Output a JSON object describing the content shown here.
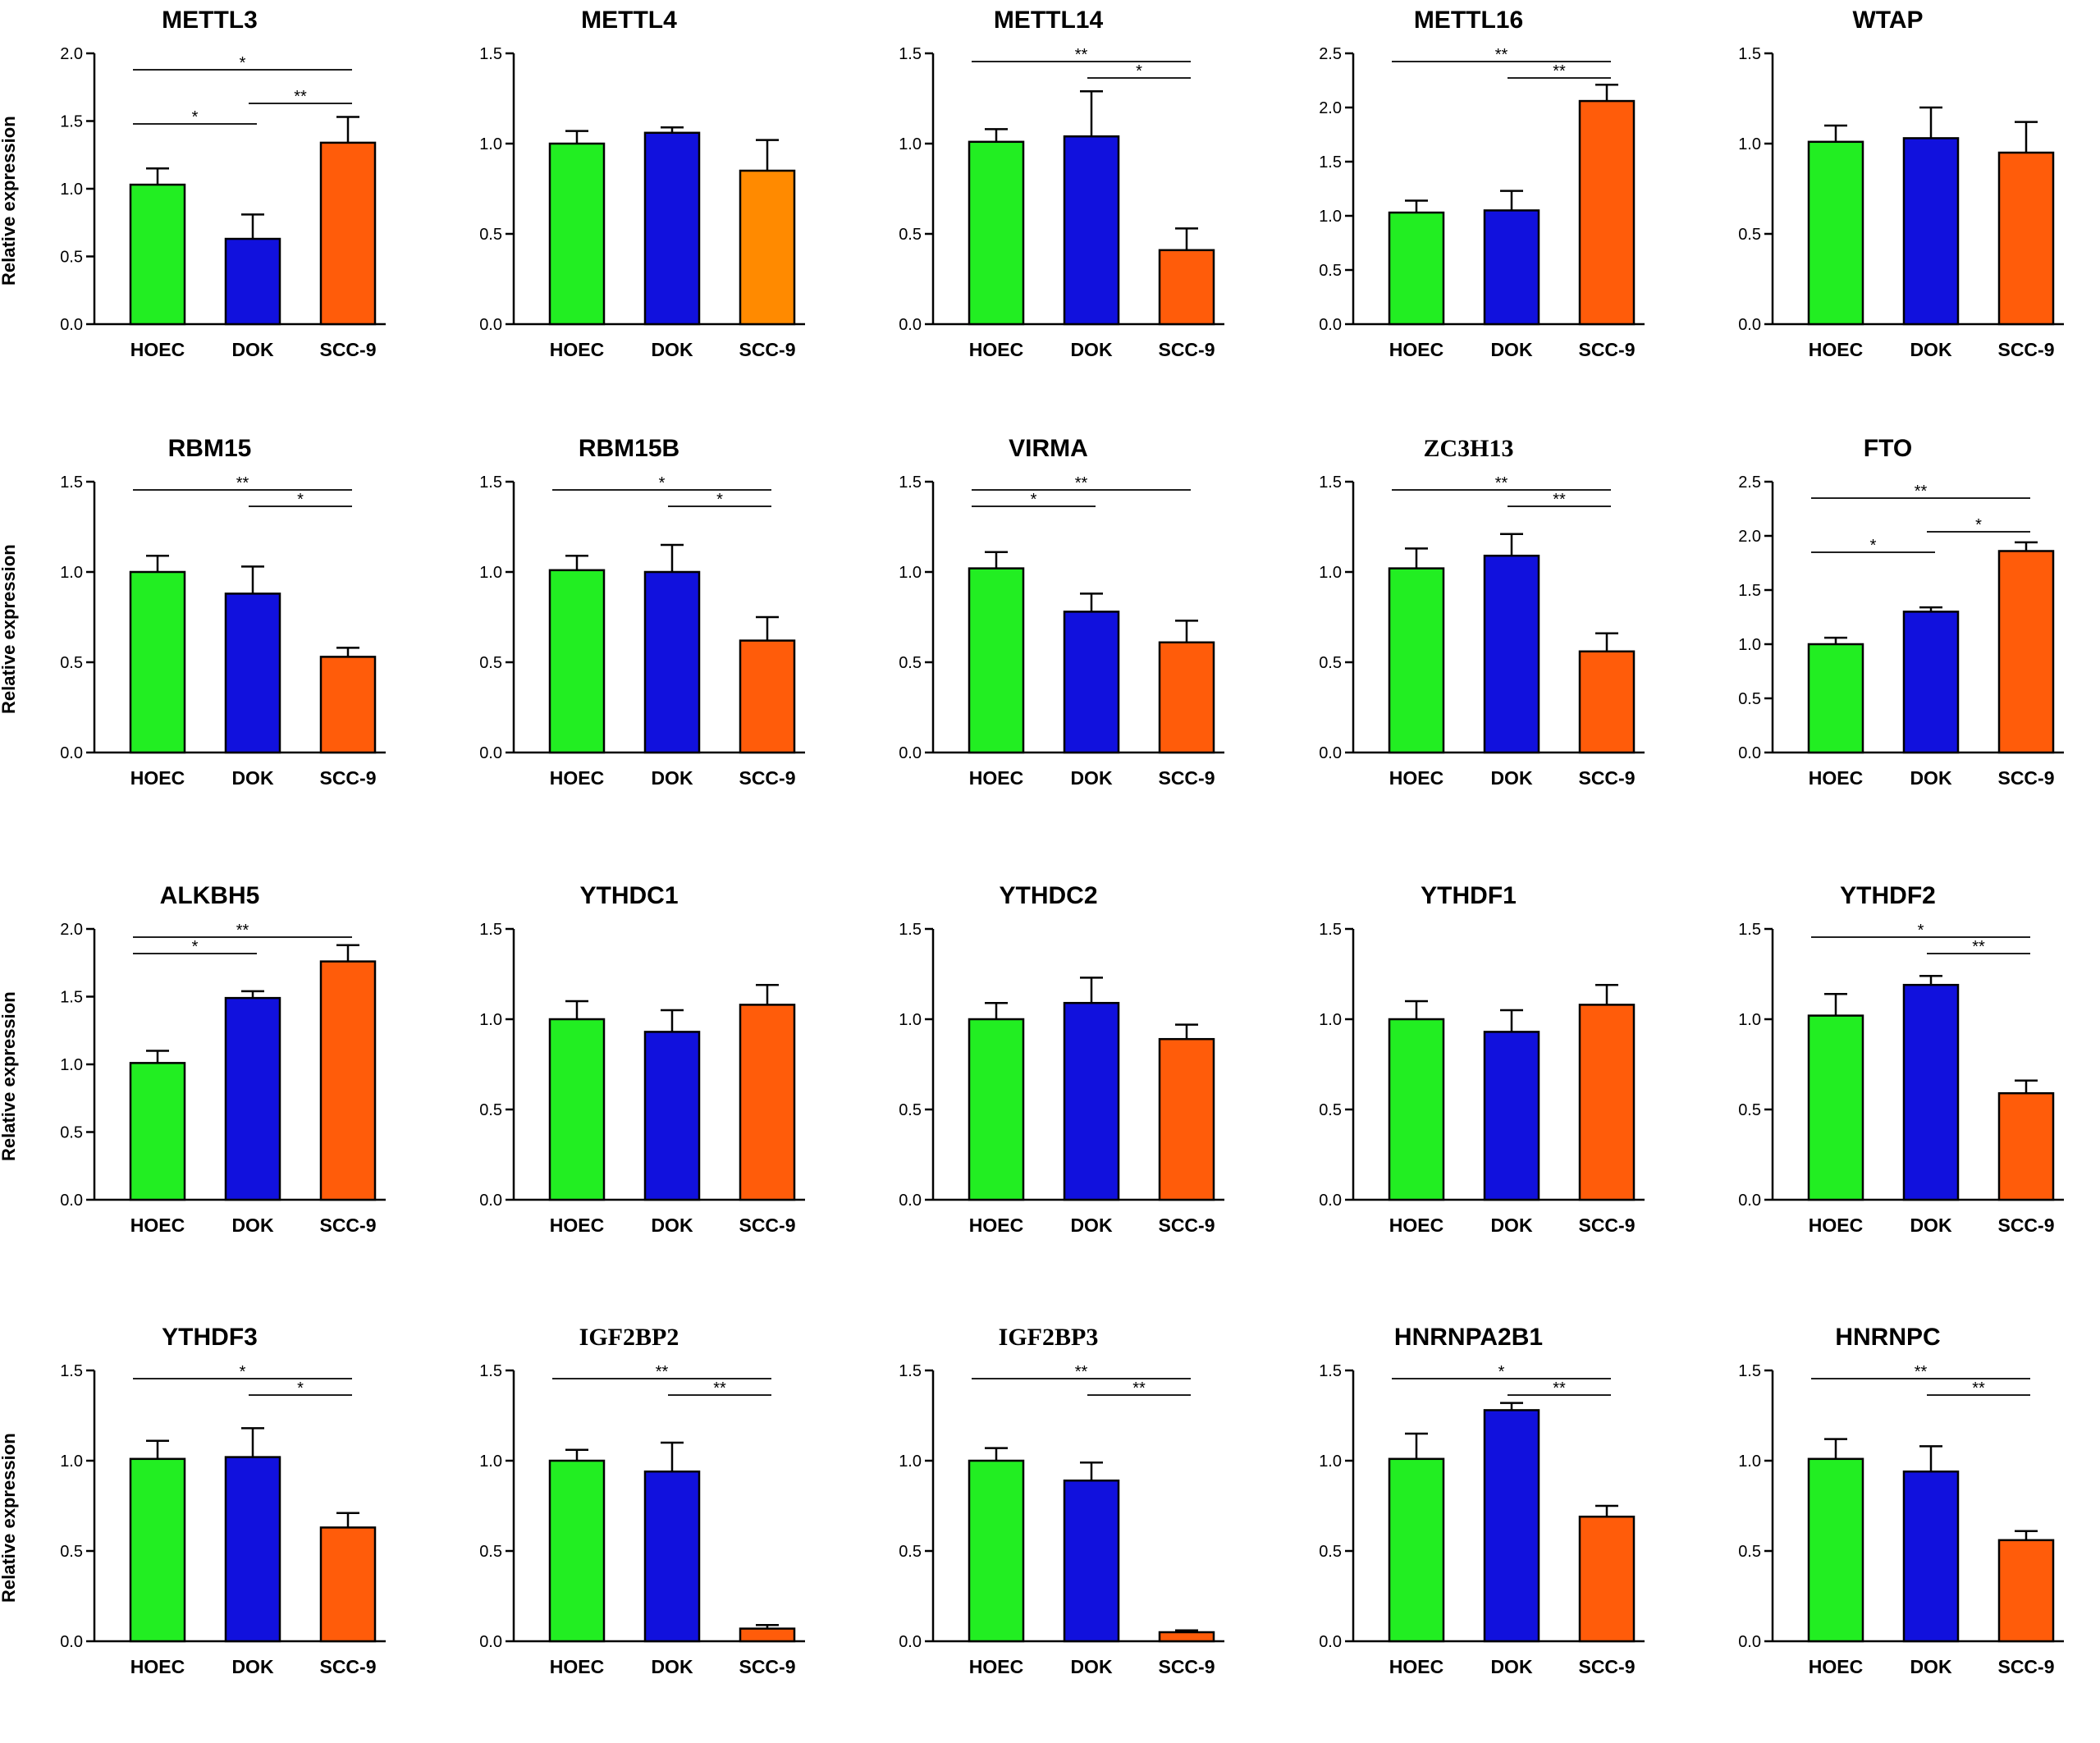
{
  "figure": {
    "ylabel": "Relative expression",
    "categories": [
      "HOEC",
      "DOK",
      "SCC-9"
    ],
    "colors": {
      "HOEC": "#22ee22",
      "DOK": "#1111dd",
      "SCC-9": "#ff5c0a",
      "SCC-9-alt": "#ff8a00"
    }
  },
  "chart_data": [
    {
      "type": "bar",
      "title": "METTL3",
      "categories": [
        "HOEC",
        "DOK",
        "SCC-9"
      ],
      "values": [
        1.03,
        0.63,
        1.34
      ],
      "errors": [
        0.12,
        0.18,
        0.19
      ],
      "ylim": [
        0,
        2.0
      ],
      "yticks": [
        "0.0",
        "0.5",
        "1.0",
        "1.5",
        "2.0"
      ],
      "ylabel": "Relative expression",
      "significance": [
        {
          "from": 0,
          "to": 2,
          "label": "*"
        },
        {
          "from": 0,
          "to": 1,
          "label": "*"
        },
        {
          "from": 1,
          "to": 2,
          "label": "**"
        }
      ]
    },
    {
      "type": "bar",
      "title": "METTL4",
      "categories": [
        "HOEC",
        "DOK",
        "SCC-9"
      ],
      "values": [
        1.0,
        1.06,
        0.85
      ],
      "errors": [
        0.07,
        0.03,
        0.17
      ],
      "ylim": [
        0,
        1.5
      ],
      "yticks": [
        "0.0",
        "0.5",
        "1.0",
        "1.5"
      ],
      "colors": [
        "#22ee22",
        "#1111dd",
        "#ff8a00"
      ],
      "significance": []
    },
    {
      "type": "bar",
      "title": "METTL14",
      "categories": [
        "HOEC",
        "DOK",
        "SCC-9"
      ],
      "values": [
        1.01,
        1.04,
        0.41
      ],
      "errors": [
        0.07,
        0.25,
        0.12
      ],
      "ylim": [
        0,
        1.5
      ],
      "yticks": [
        "0.0",
        "0.5",
        "1.0",
        "1.5"
      ],
      "significance": [
        {
          "from": 0,
          "to": 2,
          "label": "**"
        },
        {
          "from": 1,
          "to": 2,
          "label": "*"
        }
      ]
    },
    {
      "type": "bar",
      "title": "METTL16",
      "categories": [
        "HOEC",
        "DOK",
        "SCC-9"
      ],
      "values": [
        1.03,
        1.05,
        2.06
      ],
      "errors": [
        0.11,
        0.18,
        0.15
      ],
      "ylim": [
        0,
        2.5
      ],
      "yticks": [
        "0.0",
        "0.5",
        "1.0",
        "1.5",
        "2.0",
        "2.5"
      ],
      "significance": [
        {
          "from": 0,
          "to": 2,
          "label": "**"
        },
        {
          "from": 1,
          "to": 2,
          "label": "**"
        }
      ]
    },
    {
      "type": "bar",
      "title": "WTAP",
      "categories": [
        "HOEC",
        "DOK",
        "SCC-9"
      ],
      "values": [
        1.01,
        1.03,
        0.95
      ],
      "errors": [
        0.09,
        0.17,
        0.17
      ],
      "ylim": [
        0,
        1.5
      ],
      "yticks": [
        "0.0",
        "0.5",
        "1.0",
        "1.5"
      ],
      "significance": []
    },
    {
      "type": "bar",
      "title": "RBM15",
      "categories": [
        "HOEC",
        "DOK",
        "SCC-9"
      ],
      "values": [
        1.0,
        0.88,
        0.53
      ],
      "errors": [
        0.09,
        0.15,
        0.05
      ],
      "ylim": [
        0,
        1.5
      ],
      "yticks": [
        "0.0",
        "0.5",
        "1.0",
        "1.5"
      ],
      "ylabel": "Relative expression",
      "significance": [
        {
          "from": 0,
          "to": 2,
          "label": "**"
        },
        {
          "from": 1,
          "to": 2,
          "label": "*"
        }
      ]
    },
    {
      "type": "bar",
      "title": "RBM15B",
      "categories": [
        "HOEC",
        "DOK",
        "SCC-9"
      ],
      "values": [
        1.01,
        1.0,
        0.62
      ],
      "errors": [
        0.08,
        0.15,
        0.13
      ],
      "ylim": [
        0,
        1.5
      ],
      "yticks": [
        "0.0",
        "0.5",
        "1.0",
        "1.5"
      ],
      "significance": [
        {
          "from": 0,
          "to": 2,
          "label": "*"
        },
        {
          "from": 1,
          "to": 2,
          "label": "*"
        }
      ]
    },
    {
      "type": "bar",
      "title": "VIRMA",
      "categories": [
        "HOEC",
        "DOK",
        "SCC-9"
      ],
      "values": [
        1.02,
        0.78,
        0.61
      ],
      "errors": [
        0.09,
        0.1,
        0.12
      ],
      "ylim": [
        0,
        1.5
      ],
      "yticks": [
        "0.0",
        "0.5",
        "1.0",
        "1.5"
      ],
      "significance": [
        {
          "from": 0,
          "to": 2,
          "label": "**"
        },
        {
          "from": 0,
          "to": 1,
          "label": "*"
        }
      ]
    },
    {
      "type": "bar",
      "title": "ZC3H13",
      "serif": true,
      "categories": [
        "HOEC",
        "DOK",
        "SCC-9"
      ],
      "values": [
        1.02,
        1.09,
        0.56
      ],
      "errors": [
        0.11,
        0.12,
        0.1
      ],
      "ylim": [
        0,
        1.5
      ],
      "yticks": [
        "0.0",
        "0.5",
        "1.0",
        "1.5"
      ],
      "significance": [
        {
          "from": 0,
          "to": 2,
          "label": "**"
        },
        {
          "from": 1,
          "to": 2,
          "label": "**"
        }
      ]
    },
    {
      "type": "bar",
      "title": "FTO",
      "categories": [
        "HOEC",
        "DOK",
        "SCC-9"
      ],
      "values": [
        1.0,
        1.3,
        1.86
      ],
      "errors": [
        0.06,
        0.04,
        0.08
      ],
      "ylim": [
        0,
        2.5
      ],
      "yticks": [
        "0.0",
        "0.5",
        "1.0",
        "1.5",
        "2.0",
        "2.5"
      ],
      "significance": [
        {
          "from": 0,
          "to": 2,
          "label": "**"
        },
        {
          "from": 0,
          "to": 1,
          "label": "*"
        },
        {
          "from": 1,
          "to": 2,
          "label": "*"
        }
      ]
    },
    {
      "type": "bar",
      "title": "ALKBH5",
      "categories": [
        "HOEC",
        "DOK",
        "SCC-9"
      ],
      "values": [
        1.01,
        1.49,
        1.76
      ],
      "errors": [
        0.09,
        0.05,
        0.12
      ],
      "ylim": [
        0,
        2.0
      ],
      "yticks": [
        "0.0",
        "0.5",
        "1.0",
        "1.5",
        "2.0"
      ],
      "ylabel": "Relative expression",
      "significance": [
        {
          "from": 0,
          "to": 2,
          "label": "**"
        },
        {
          "from": 0,
          "to": 1,
          "label": "*"
        }
      ]
    },
    {
      "type": "bar",
      "title": "YTHDC1",
      "categories": [
        "HOEC",
        "DOK",
        "SCC-9"
      ],
      "values": [
        1.0,
        0.93,
        1.08
      ],
      "errors": [
        0.1,
        0.12,
        0.11
      ],
      "ylim": [
        0,
        1.5
      ],
      "yticks": [
        "0.0",
        "0.5",
        "1.0",
        "1.5"
      ],
      "significance": []
    },
    {
      "type": "bar",
      "title": "YTHDC2",
      "categories": [
        "HOEC",
        "DOK",
        "SCC-9"
      ],
      "values": [
        1.0,
        1.09,
        0.89
      ],
      "errors": [
        0.09,
        0.14,
        0.08
      ],
      "ylim": [
        0,
        1.5
      ],
      "yticks": [
        "0.0",
        "0.5",
        "1.0",
        "1.5"
      ],
      "significance": []
    },
    {
      "type": "bar",
      "title": "YTHDF1",
      "categories": [
        "HOEC",
        "DOK",
        "SCC-9"
      ],
      "values": [
        1.0,
        0.93,
        1.08
      ],
      "errors": [
        0.1,
        0.12,
        0.11
      ],
      "ylim": [
        0,
        1.5
      ],
      "yticks": [
        "0.0",
        "0.5",
        "1.0",
        "1.5"
      ],
      "significance": []
    },
    {
      "type": "bar",
      "title": "YTHDF2",
      "categories": [
        "HOEC",
        "DOK",
        "SCC-9"
      ],
      "values": [
        1.02,
        1.19,
        0.59
      ],
      "errors": [
        0.12,
        0.05,
        0.07
      ],
      "ylim": [
        0,
        1.5
      ],
      "yticks": [
        "0.0",
        "0.5",
        "1.0",
        "1.5"
      ],
      "significance": [
        {
          "from": 0,
          "to": 2,
          "label": "*"
        },
        {
          "from": 1,
          "to": 2,
          "label": "**"
        }
      ]
    },
    {
      "type": "bar",
      "title": "YTHDF3",
      "categories": [
        "HOEC",
        "DOK",
        "SCC-9"
      ],
      "values": [
        1.01,
        1.02,
        0.63
      ],
      "errors": [
        0.1,
        0.16,
        0.08
      ],
      "ylim": [
        0,
        1.5
      ],
      "yticks": [
        "0.0",
        "0.5",
        "1.0",
        "1.5"
      ],
      "ylabel": "Relative expression",
      "significance": [
        {
          "from": 0,
          "to": 2,
          "label": "*"
        },
        {
          "from": 1,
          "to": 2,
          "label": "*"
        }
      ]
    },
    {
      "type": "bar",
      "title": "IGF2BP2",
      "serif": true,
      "categories": [
        "HOEC",
        "DOK",
        "SCC-9"
      ],
      "values": [
        1.0,
        0.94,
        0.07
      ],
      "errors": [
        0.06,
        0.16,
        0.02
      ],
      "ylim": [
        0,
        1.5
      ],
      "yticks": [
        "0.0",
        "0.5",
        "1.0",
        "1.5"
      ],
      "significance": [
        {
          "from": 0,
          "to": 2,
          "label": "**"
        },
        {
          "from": 1,
          "to": 2,
          "label": "**"
        }
      ]
    },
    {
      "type": "bar",
      "title": "IGF2BP3",
      "serif": true,
      "categories": [
        "HOEC",
        "DOK",
        "SCC-9"
      ],
      "values": [
        1.0,
        0.89,
        0.05
      ],
      "errors": [
        0.07,
        0.1,
        0.01
      ],
      "ylim": [
        0,
        1.5
      ],
      "yticks": [
        "0.0",
        "0.5",
        "1.0",
        "1.5"
      ],
      "significance": [
        {
          "from": 0,
          "to": 2,
          "label": "**"
        },
        {
          "from": 1,
          "to": 2,
          "label": "**"
        }
      ]
    },
    {
      "type": "bar",
      "title": "HNRNPA2B1",
      "categories": [
        "HOEC",
        "DOK",
        "SCC-9"
      ],
      "values": [
        1.01,
        1.28,
        0.69
      ],
      "errors": [
        0.14,
        0.04,
        0.06
      ],
      "ylim": [
        0,
        1.5
      ],
      "yticks": [
        "0.0",
        "0.5",
        "1.0",
        "1.5"
      ],
      "significance": [
        {
          "from": 0,
          "to": 2,
          "label": "*"
        },
        {
          "from": 1,
          "to": 2,
          "label": "**"
        }
      ]
    },
    {
      "type": "bar",
      "title": "HNRNPC",
      "categories": [
        "HOEC",
        "DOK",
        "SCC-9"
      ],
      "values": [
        1.01,
        0.94,
        0.56
      ],
      "errors": [
        0.11,
        0.14,
        0.05
      ],
      "ylim": [
        0,
        1.5
      ],
      "yticks": [
        "0.0",
        "0.5",
        "1.0",
        "1.5"
      ],
      "significance": [
        {
          "from": 0,
          "to": 2,
          "label": "**"
        },
        {
          "from": 1,
          "to": 2,
          "label": "**"
        }
      ]
    }
  ]
}
